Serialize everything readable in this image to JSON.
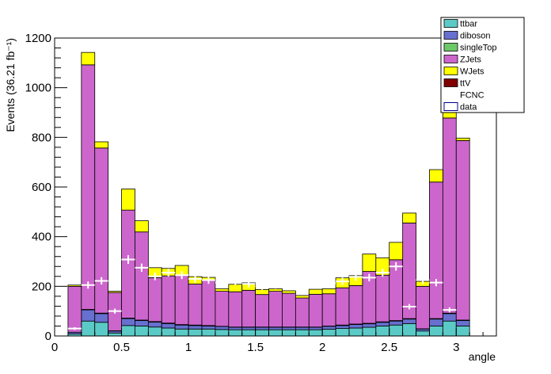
{
  "chart_data": {
    "type": "bar",
    "stacked": true,
    "xlabel": "angle",
    "ylabel": "Events (36.21 fb⁻¹)",
    "xlim": [
      0,
      3.3
    ],
    "ylim": [
      0,
      1200
    ],
    "x_ticks": [
      {
        "value": 0,
        "label": "0"
      },
      {
        "value": 0.5,
        "label": "0.5"
      },
      {
        "value": 1,
        "label": "1"
      },
      {
        "value": 1.5,
        "label": "1.5"
      },
      {
        "value": 2,
        "label": "2"
      },
      {
        "value": 2.5,
        "label": "2.5"
      },
      {
        "value": 3,
        "label": "3"
      }
    ],
    "y_ticks": [
      {
        "value": 0,
        "label": "0"
      },
      {
        "value": 200,
        "label": "200"
      },
      {
        "value": 400,
        "label": "400"
      },
      {
        "value": 600,
        "label": "600"
      },
      {
        "value": 800,
        "label": "800"
      },
      {
        "value": 1000,
        "label": "1000"
      },
      {
        "value": 1200,
        "label": "1200"
      }
    ],
    "bin_edges": [
      0.1,
      0.2,
      0.3,
      0.4,
      0.5,
      0.6,
      0.7,
      0.8,
      0.9,
      1.0,
      1.1,
      1.2,
      1.3,
      1.4,
      1.5,
      1.6,
      1.7,
      1.8,
      1.9,
      2.0,
      2.1,
      2.2,
      2.3,
      2.4,
      2.5,
      2.6,
      2.7,
      2.8,
      2.9,
      3.0,
      3.1
    ],
    "series": [
      {
        "name": "ttbar",
        "color": "#5bcac6",
        "values": [
          8,
          60,
          55,
          12,
          42,
          40,
          36,
          32,
          28,
          28,
          28,
          26,
          25,
          25,
          25,
          25,
          25,
          25,
          25,
          27,
          30,
          32,
          35,
          40,
          44,
          50,
          20,
          40,
          60,
          40
        ]
      },
      {
        "name": "diboson",
        "color": "#6770cf",
        "values": [
          7,
          45,
          35,
          8,
          28,
          22,
          20,
          18,
          16,
          14,
          12,
          12,
          10,
          10,
          10,
          10,
          10,
          10,
          10,
          12,
          12,
          14,
          14,
          15,
          16,
          18,
          8,
          28,
          30,
          22
        ]
      },
      {
        "name": "singleTop",
        "color": "#6dc968",
        "values": [
          0,
          2,
          2,
          1,
          2,
          2,
          2,
          2,
          2,
          2,
          2,
          1,
          1,
          1,
          1,
          1,
          1,
          1,
          1,
          1,
          2,
          2,
          2,
          2,
          2,
          2,
          1,
          2,
          2,
          2
        ]
      },
      {
        "name": "ZJets",
        "color": "#cc66cc",
        "values": [
          185,
          985,
          665,
          154,
          435,
          355,
          177,
          190,
          198,
          165,
          184,
          141,
          142,
          148,
          131,
          144,
          136,
          117,
          132,
          130,
          150,
          155,
          209,
          188,
          245,
          385,
          171,
          550,
          786,
          723
        ]
      },
      {
        "name": "WJets",
        "color": "#ffff00",
        "values": [
          5,
          50,
          25,
          5,
          85,
          45,
          40,
          30,
          40,
          30,
          10,
          10,
          30,
          30,
          20,
          10,
          10,
          10,
          20,
          20,
          40,
          40,
          70,
          70,
          70,
          40,
          20,
          50,
          40,
          10
        ]
      },
      {
        "name": "ttV",
        "color": "#800000",
        "values": [
          0,
          0,
          0,
          0,
          0,
          0,
          0,
          0,
          0,
          0,
          0,
          0,
          0,
          0,
          0,
          0,
          0,
          0,
          0,
          0,
          0,
          0,
          0,
          0,
          0,
          0,
          0,
          0,
          0,
          0
        ]
      }
    ],
    "signal": {
      "name": "FCNC",
      "values": []
    },
    "data": {
      "name": "data",
      "x": [
        0.15,
        0.25,
        0.35,
        0.45,
        0.55,
        0.65,
        0.75,
        0.85,
        0.95,
        1.05,
        1.15,
        1.25,
        1.35,
        1.45,
        1.55,
        1.65,
        1.75,
        1.85,
        1.95,
        2.05,
        2.15,
        2.25,
        2.35,
        2.45,
        2.55,
        2.65,
        2.75,
        2.85,
        2.95
      ],
      "y": [
        30,
        205,
        222,
        100,
        308,
        275,
        240,
        255,
        245,
        230,
        225,
        215,
        220,
        210,
        200,
        205,
        210,
        205,
        215,
        212,
        220,
        238,
        235,
        255,
        280,
        118,
        225,
        215,
        105
      ]
    },
    "legend": {
      "placement": "top-right",
      "entries": [
        {
          "label": "ttbar",
          "color": "#5bcac6",
          "style": "fill"
        },
        {
          "label": "diboson",
          "color": "#6770cf",
          "style": "fill"
        },
        {
          "label": "singleTop",
          "color": "#6dc968",
          "style": "fill"
        },
        {
          "label": "ZJets",
          "color": "#cc66cc",
          "style": "fill"
        },
        {
          "label": "WJets",
          "color": "#ffff00",
          "style": "fill"
        },
        {
          "label": "ttV",
          "color": "#800000",
          "style": "fill"
        },
        {
          "label": "FCNC",
          "color": "#ffffff",
          "style": "none"
        },
        {
          "label": "data",
          "color": "#ffffff",
          "style": "box"
        }
      ]
    },
    "grid": false
  }
}
